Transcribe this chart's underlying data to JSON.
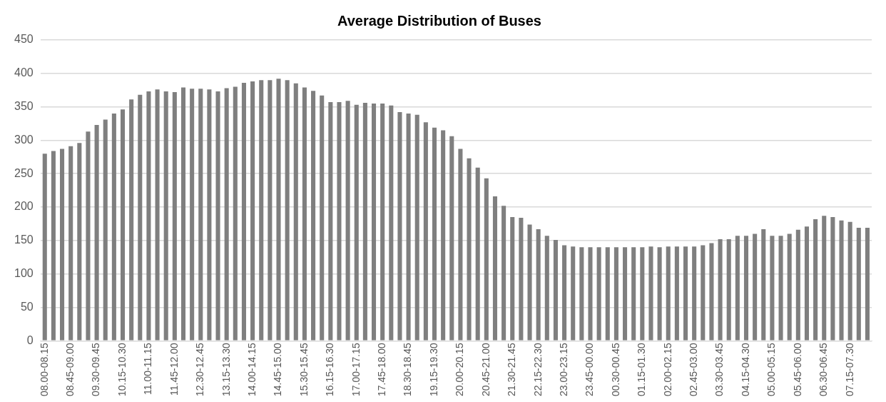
{
  "chart_data": {
    "type": "bar",
    "title": "Average Distribution of Buses",
    "categories": [
      "08.00-08.15",
      null,
      null,
      "08.45-09.00",
      null,
      null,
      "09.30-09.45",
      null,
      null,
      "10.15-10.30",
      null,
      null,
      "11.00-11.15",
      null,
      null,
      "11.45-12.00",
      null,
      null,
      "12.30-12.45",
      null,
      null,
      "13.15-13.30",
      null,
      null,
      "14.00-14.15",
      null,
      null,
      "14.45-15.00",
      null,
      null,
      "15.30-15.45",
      null,
      null,
      "16.15-16.30",
      null,
      null,
      "17.00-17.15",
      null,
      null,
      "17.45-18.00",
      null,
      null,
      "18.30-18.45",
      null,
      null,
      "19.15-19.30",
      null,
      null,
      "20.00-20.15",
      null,
      null,
      "20.45-21.00",
      null,
      null,
      "21.30-21.45",
      null,
      null,
      "22.15-22.30",
      null,
      null,
      "23.00-23.15",
      null,
      null,
      "23.45-00.00",
      null,
      null,
      "00.30-00.45",
      null,
      null,
      "01.15-01.30",
      null,
      null,
      "02.00-02.15",
      null,
      null,
      "02.45-03.00",
      null,
      null,
      "03.30-03.45",
      null,
      null,
      "04.15-04.30",
      null,
      null,
      "05.00-05.15",
      null,
      null,
      "05.45-06.00",
      null,
      null,
      "06.30-06.45",
      null,
      null,
      "07.15-07.30",
      null,
      null
    ],
    "values": [
      280,
      284,
      287,
      291,
      296,
      313,
      323,
      331,
      340,
      346,
      361,
      368,
      373,
      376,
      373,
      372,
      379,
      377,
      377,
      376,
      373,
      378,
      380,
      386,
      388,
      390,
      390,
      392,
      390,
      385,
      379,
      374,
      367,
      357,
      357,
      359,
      353,
      356,
      355,
      355,
      352,
      342,
      340,
      338,
      327,
      319,
      315,
      306,
      287,
      273,
      259,
      243,
      216,
      202,
      185,
      184,
      174,
      167,
      157,
      151,
      143,
      141,
      140,
      140,
      140,
      140,
      140,
      140,
      140,
      140,
      141,
      140,
      141,
      141,
      141,
      141,
      143,
      146,
      152,
      152,
      157,
      157,
      160,
      167,
      157,
      157,
      160,
      166,
      171,
      182,
      187,
      185,
      180,
      178,
      169,
      169
    ],
    "color": "#7f7f7f",
    "ylim": [
      0,
      450
    ],
    "yticks": [
      0,
      50,
      100,
      150,
      200,
      250,
      300,
      350,
      400,
      450
    ],
    "grid": "y",
    "legend": false
  }
}
